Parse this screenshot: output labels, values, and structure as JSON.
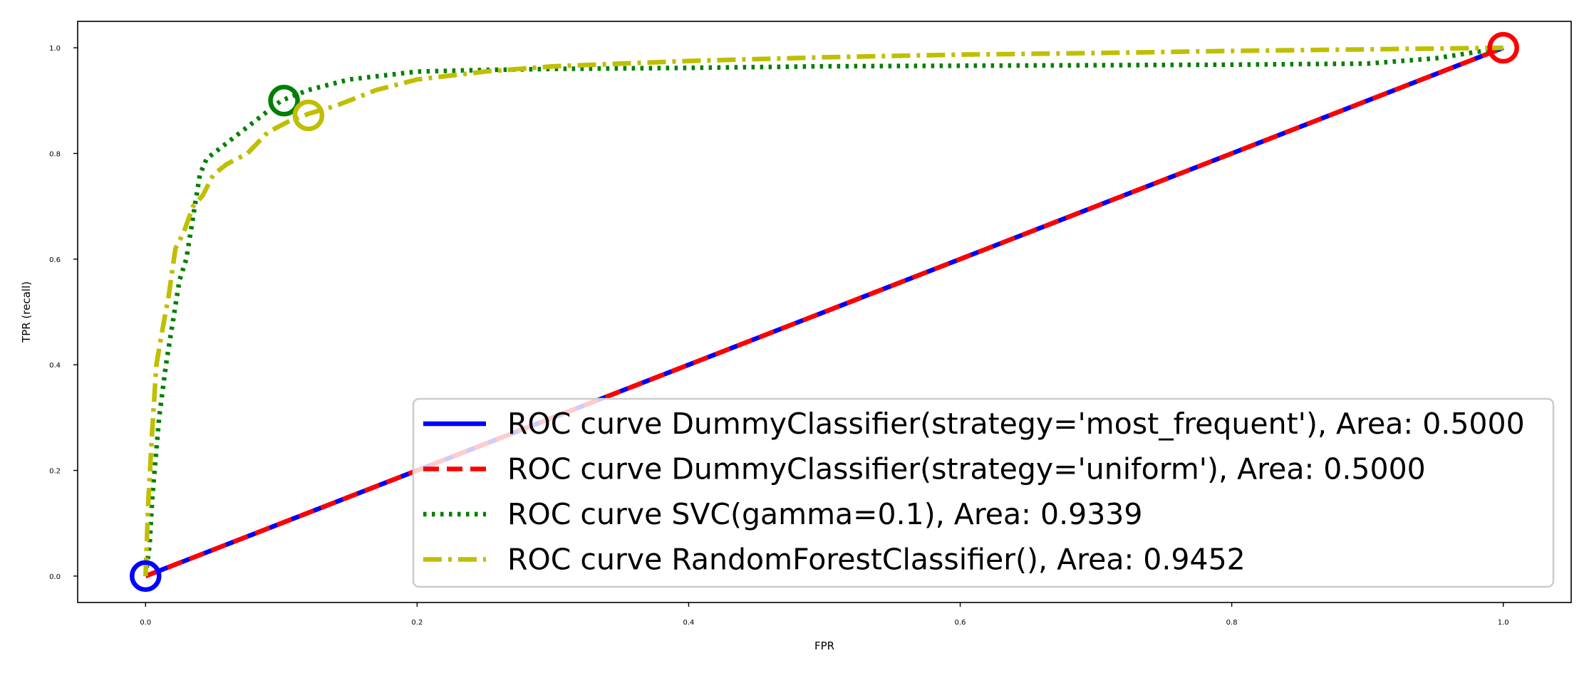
{
  "chart_data": {
    "type": "line",
    "title": "",
    "xlabel": "FPR",
    "ylabel": "TPR (recall)",
    "xlim": [
      -0.05,
      1.05
    ],
    "ylim": [
      -0.05,
      1.05
    ],
    "xticks": [
      "0.0",
      "0.2",
      "0.4",
      "0.6",
      "0.8",
      "1.0"
    ],
    "yticks": [
      "0.0",
      "0.2",
      "0.4",
      "0.6",
      "0.8",
      "1.0"
    ],
    "grid": false,
    "legend_position": "lower-right",
    "series": [
      {
        "name": "ROC curve DummyClassifier(strategy='most_frequent'), Area: 0.5000",
        "color": "#0000ff",
        "style": "solid",
        "x": [
          0.0,
          1.0
        ],
        "y": [
          0.0,
          1.0
        ],
        "marker": {
          "x": 0.0,
          "y": 0.0
        }
      },
      {
        "name": "ROC curve DummyClassifier(strategy='uniform'), Area: 0.5000",
        "color": "#ff0000",
        "style": "dashed",
        "x": [
          0.0,
          1.0
        ],
        "y": [
          0.0,
          1.0
        ],
        "marker": {
          "x": 1.0,
          "y": 1.0
        }
      },
      {
        "name": "ROC curve SVC(gamma=0.1), Area: 0.9339",
        "color": "#008000",
        "style": "dotted",
        "x": [
          0.0,
          0.003,
          0.005,
          0.01,
          0.015,
          0.02,
          0.025,
          0.03,
          0.035,
          0.04,
          0.045,
          0.06,
          0.08,
          0.1,
          0.12,
          0.15,
          0.2,
          0.25,
          0.3,
          0.4,
          0.5,
          0.6,
          0.7,
          0.8,
          0.9,
          0.95,
          1.0
        ],
        "y": [
          0.0,
          0.06,
          0.15,
          0.3,
          0.4,
          0.48,
          0.56,
          0.6,
          0.68,
          0.76,
          0.79,
          0.82,
          0.86,
          0.9,
          0.92,
          0.94,
          0.955,
          0.958,
          0.96,
          0.962,
          0.965,
          0.966,
          0.967,
          0.968,
          0.97,
          0.98,
          1.0
        ],
        "marker": {
          "x": 0.102,
          "y": 0.9
        }
      },
      {
        "name": "ROC curve RandomForestClassifier(), Area: 0.9452",
        "color": "#bfbf00",
        "style": "dashdot",
        "x": [
          0.0,
          0.002,
          0.005,
          0.008,
          0.012,
          0.017,
          0.022,
          0.028,
          0.035,
          0.042,
          0.05,
          0.06,
          0.075,
          0.09,
          0.105,
          0.12,
          0.14,
          0.17,
          0.2,
          0.25,
          0.3,
          0.4,
          0.5,
          0.6,
          0.7,
          0.8,
          0.9,
          1.0
        ],
        "y": [
          0.0,
          0.14,
          0.28,
          0.4,
          0.46,
          0.53,
          0.62,
          0.65,
          0.7,
          0.72,
          0.76,
          0.78,
          0.8,
          0.84,
          0.86,
          0.875,
          0.89,
          0.92,
          0.94,
          0.955,
          0.965,
          0.975,
          0.982,
          0.987,
          0.99,
          0.994,
          0.997,
          1.0
        ],
        "marker": {
          "x": 0.12,
          "y": 0.872
        }
      }
    ]
  }
}
